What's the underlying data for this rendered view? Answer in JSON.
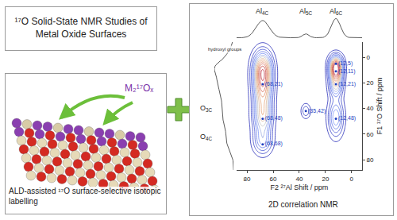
{
  "header": {
    "title": "¹⁷O Solid-State NMR Studies of Metal Oxide Surfaces"
  },
  "illustration": {
    "label": "M₂¹⁷Oₓ",
    "caption": "ALD-assisted ¹⁷O surface-selective isotopic labelling"
  },
  "chart_data": {
    "type": "contour",
    "title": "2D correlation NMR",
    "x_label": "F2 ²⁷Al Shift / ppm",
    "y_label": "F1 ¹⁷O Shift / ppm",
    "xlim": [
      88,
      -8
    ],
    "xticks": [
      80,
      60,
      40,
      20,
      0
    ],
    "ylim": [
      -12,
      88
    ],
    "yticks": [
      0,
      20,
      40,
      60,
      80
    ],
    "color": "#5a5a5a",
    "peak_color": "#1f3fbf",
    "peaks": [
      {
        "x": 68,
        "y": 21,
        "label": "(68,21)"
      },
      {
        "x": 68,
        "y": 48,
        "label": "(68,48)"
      },
      {
        "x": 68,
        "y": 68,
        "label": "(68,68)"
      },
      {
        "x": 35,
        "y": 42,
        "label": "(35,42)"
      },
      {
        "x": 12,
        "y": 5,
        "label": "(12,5)"
      },
      {
        "x": 12,
        "y": 11,
        "label": "(12,11)"
      },
      {
        "x": 12,
        "y": 21,
        "label": "(12,21)"
      },
      {
        "x": 12,
        "y": 48,
        "label": "(12,48)"
      }
    ],
    "signals": [
      {
        "x": 68,
        "y": 8,
        "width_x": 5,
        "width_y": 9,
        "intensity": 1.0
      },
      {
        "x": 68,
        "y": 24,
        "width_x": 5,
        "width_y": 10,
        "intensity": 0.9
      },
      {
        "x": 68,
        "y": 46,
        "width_x": 5,
        "width_y": 10,
        "intensity": 0.8
      },
      {
        "x": 68,
        "y": 66,
        "width_x": 5,
        "width_y": 7,
        "intensity": 0.45
      },
      {
        "x": 35,
        "y": 42,
        "width_x": 2.5,
        "width_y": 4,
        "intensity": 0.3
      },
      {
        "x": 12,
        "y": 5,
        "width_x": 3.5,
        "width_y": 5,
        "intensity": 0.95
      },
      {
        "x": 12,
        "y": 12,
        "width_x": 3.5,
        "width_y": 5,
        "intensity": 0.9
      },
      {
        "x": 12,
        "y": 22,
        "width_x": 3.5,
        "width_y": 6,
        "intensity": 0.7
      },
      {
        "x": 12,
        "y": 47,
        "width_x": 4,
        "width_y": 10,
        "intensity": 0.6
      }
    ],
    "x_sites": [
      {
        "base": "Al",
        "sub": "4C",
        "x": 68
      },
      {
        "base": "Al",
        "sub": "5C",
        "x": 35
      },
      {
        "base": "Al",
        "sub": "6C",
        "x": 12
      }
    ],
    "y_sites": [
      {
        "base": "O",
        "sub": "3C",
        "y": 40
      },
      {
        "base": "O",
        "sub": "4C",
        "y": 62
      }
    ],
    "y_note": {
      "text": "hydroxyl groups",
      "y": -6
    }
  }
}
